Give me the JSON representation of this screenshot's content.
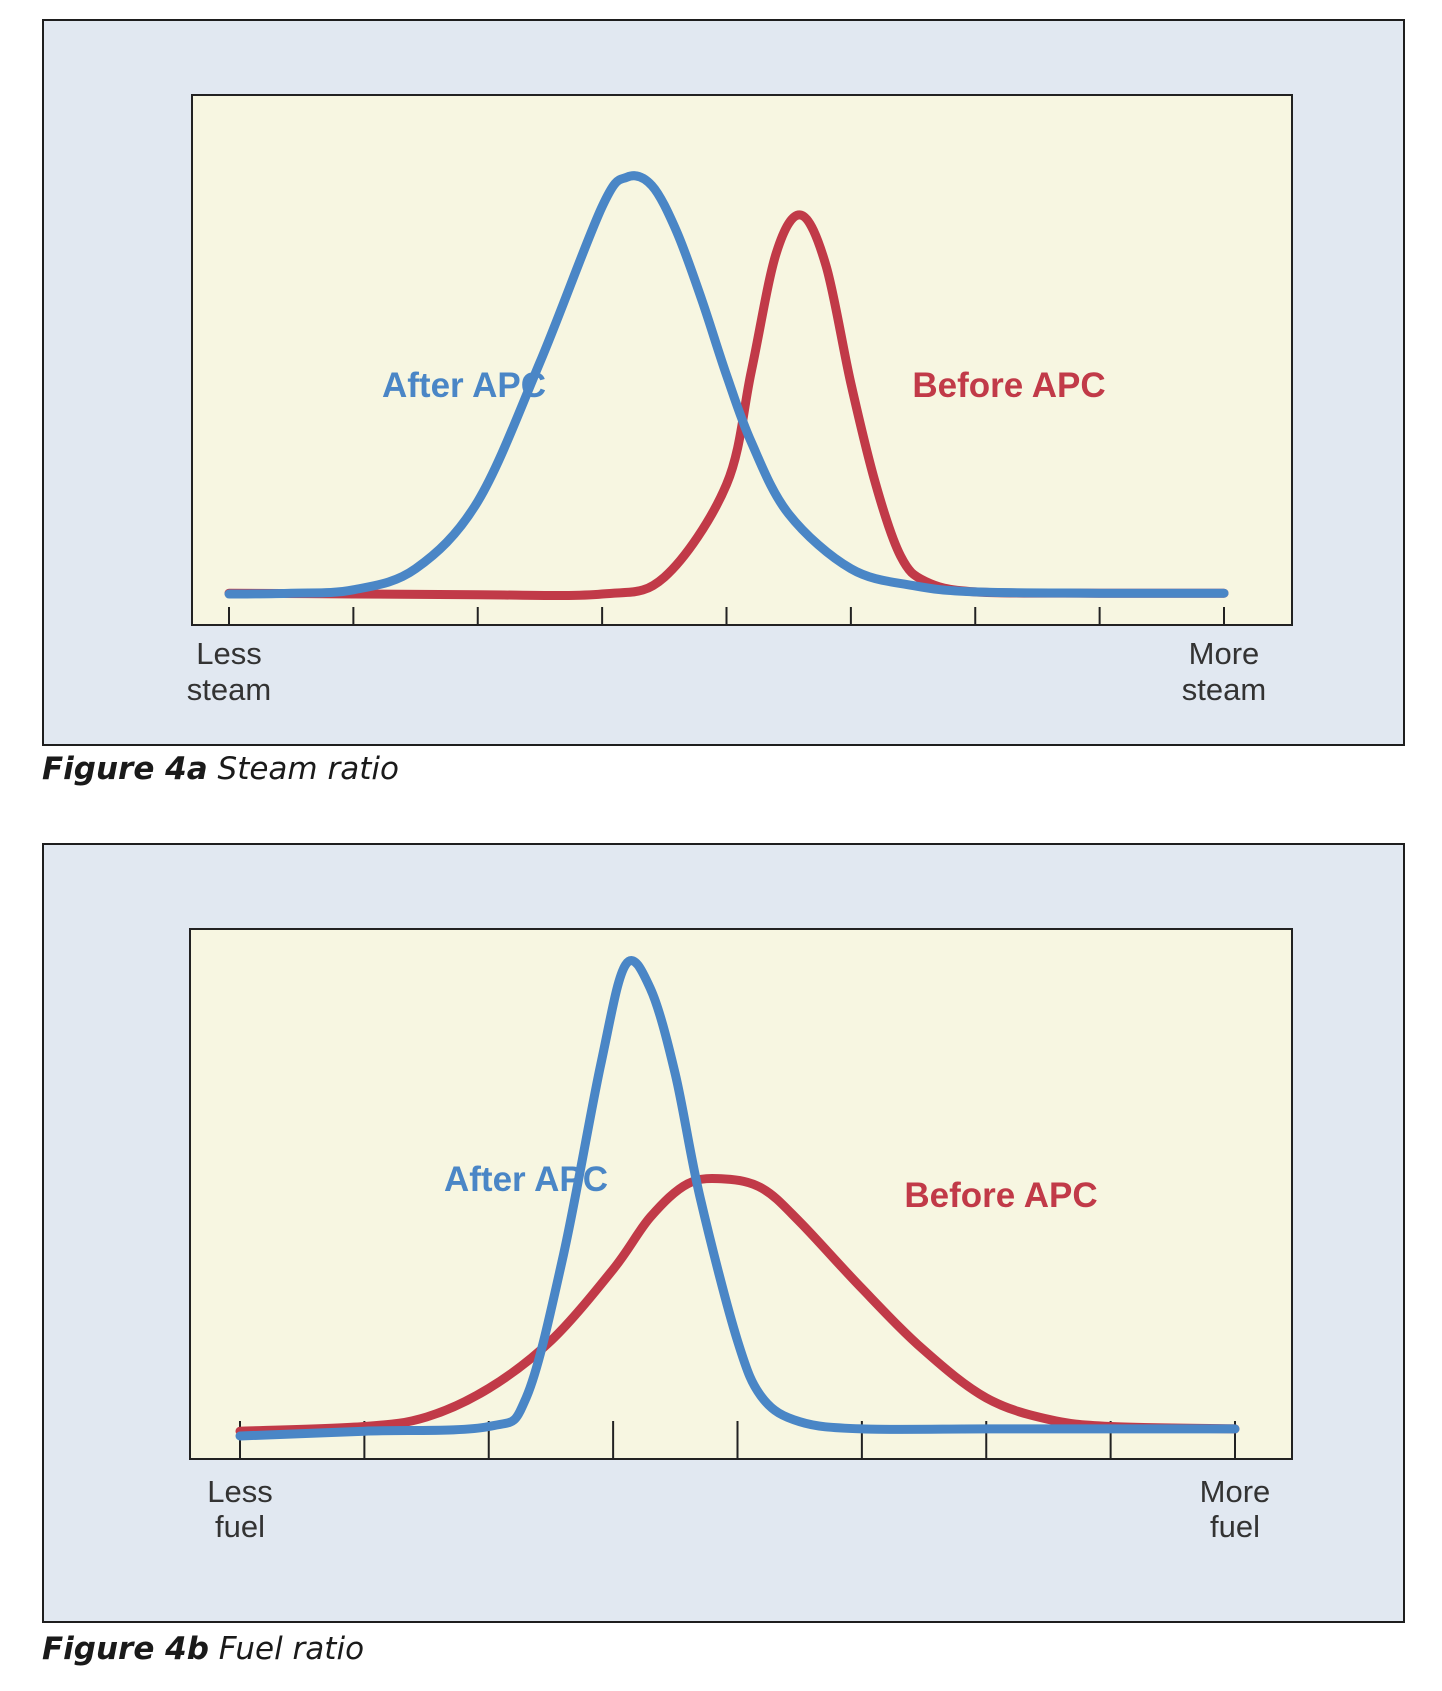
{
  "figures": [
    {
      "caption_number": "Figure 4a",
      "caption_text": "Steam ratio"
    },
    {
      "caption_number": "Figure 4b",
      "caption_text": "Fuel ratio"
    }
  ],
  "colors": {
    "panel_background": "#e1e8f1",
    "plot_background": "#f7f6e1",
    "before_apc": "#c13a48",
    "after_apc": "#4a86c6",
    "axis": "#222222"
  },
  "chart_data": [
    {
      "type": "line",
      "x_axis": {
        "left_label": [
          "Less",
          "steam"
        ],
        "right_label": [
          "More",
          "steam"
        ],
        "tick_count": 9
      },
      "ylim": [
        0,
        1
      ],
      "xlim": [
        0,
        8
      ],
      "grid": false,
      "legend": "inline labels",
      "series": [
        {
          "name": "After APC",
          "color": "#4a86c6",
          "x": [
            0,
            0.5,
            1.0,
            1.5,
            2.0,
            2.5,
            3.0,
            3.2,
            3.4,
            3.6,
            3.8,
            4.0,
            4.2,
            4.5,
            5.0,
            5.5,
            6.0,
            7.0,
            8.0
          ],
          "y": [
            0.0,
            0.002,
            0.01,
            0.06,
            0.22,
            0.55,
            0.92,
            0.99,
            0.97,
            0.86,
            0.7,
            0.52,
            0.36,
            0.19,
            0.06,
            0.02,
            0.005,
            0.002,
            0.002
          ]
        },
        {
          "name": "Before APC",
          "color": "#c13a48",
          "x": [
            0,
            1.0,
            2.0,
            3.0,
            3.5,
            4.0,
            4.2,
            4.4,
            4.6,
            4.8,
            5.0,
            5.2,
            5.4,
            5.6,
            6.0,
            7.0,
            8.0
          ],
          "y": [
            0.002,
            0.0,
            -0.002,
            0.0,
            0.04,
            0.26,
            0.53,
            0.81,
            0.9,
            0.78,
            0.5,
            0.26,
            0.09,
            0.03,
            0.005,
            0.002,
            0.002
          ]
        }
      ]
    },
    {
      "type": "line",
      "x_axis": {
        "left_label": [
          "Less",
          "fuel"
        ],
        "right_label": [
          "More",
          "fuel"
        ],
        "tick_count": 9
      },
      "ylim": [
        0,
        1
      ],
      "xlim": [
        0,
        8
      ],
      "grid": false,
      "legend": "inline labels",
      "series": [
        {
          "name": "After APC",
          "color": "#4a86c6",
          "x": [
            0,
            1.0,
            2.0,
            2.3,
            2.6,
            2.9,
            3.1,
            3.3,
            3.5,
            3.7,
            4.0,
            4.2,
            4.5,
            5.0,
            6.0,
            7.0,
            8.0
          ],
          "y": [
            0.0,
            0.01,
            0.02,
            0.08,
            0.38,
            0.78,
            0.99,
            0.94,
            0.76,
            0.5,
            0.2,
            0.08,
            0.03,
            0.015,
            0.015,
            0.015,
            0.015
          ]
        },
        {
          "name": "Before APC",
          "color": "#c13a48",
          "x": [
            0,
            1.0,
            1.5,
            2.0,
            2.5,
            3.0,
            3.3,
            3.6,
            3.9,
            4.2,
            4.5,
            5.0,
            5.5,
            6.0,
            6.5,
            7.0,
            8.0
          ],
          "y": [
            0.01,
            0.02,
            0.04,
            0.1,
            0.2,
            0.35,
            0.46,
            0.53,
            0.54,
            0.52,
            0.45,
            0.31,
            0.18,
            0.08,
            0.035,
            0.02,
            0.015
          ]
        }
      ]
    }
  ]
}
